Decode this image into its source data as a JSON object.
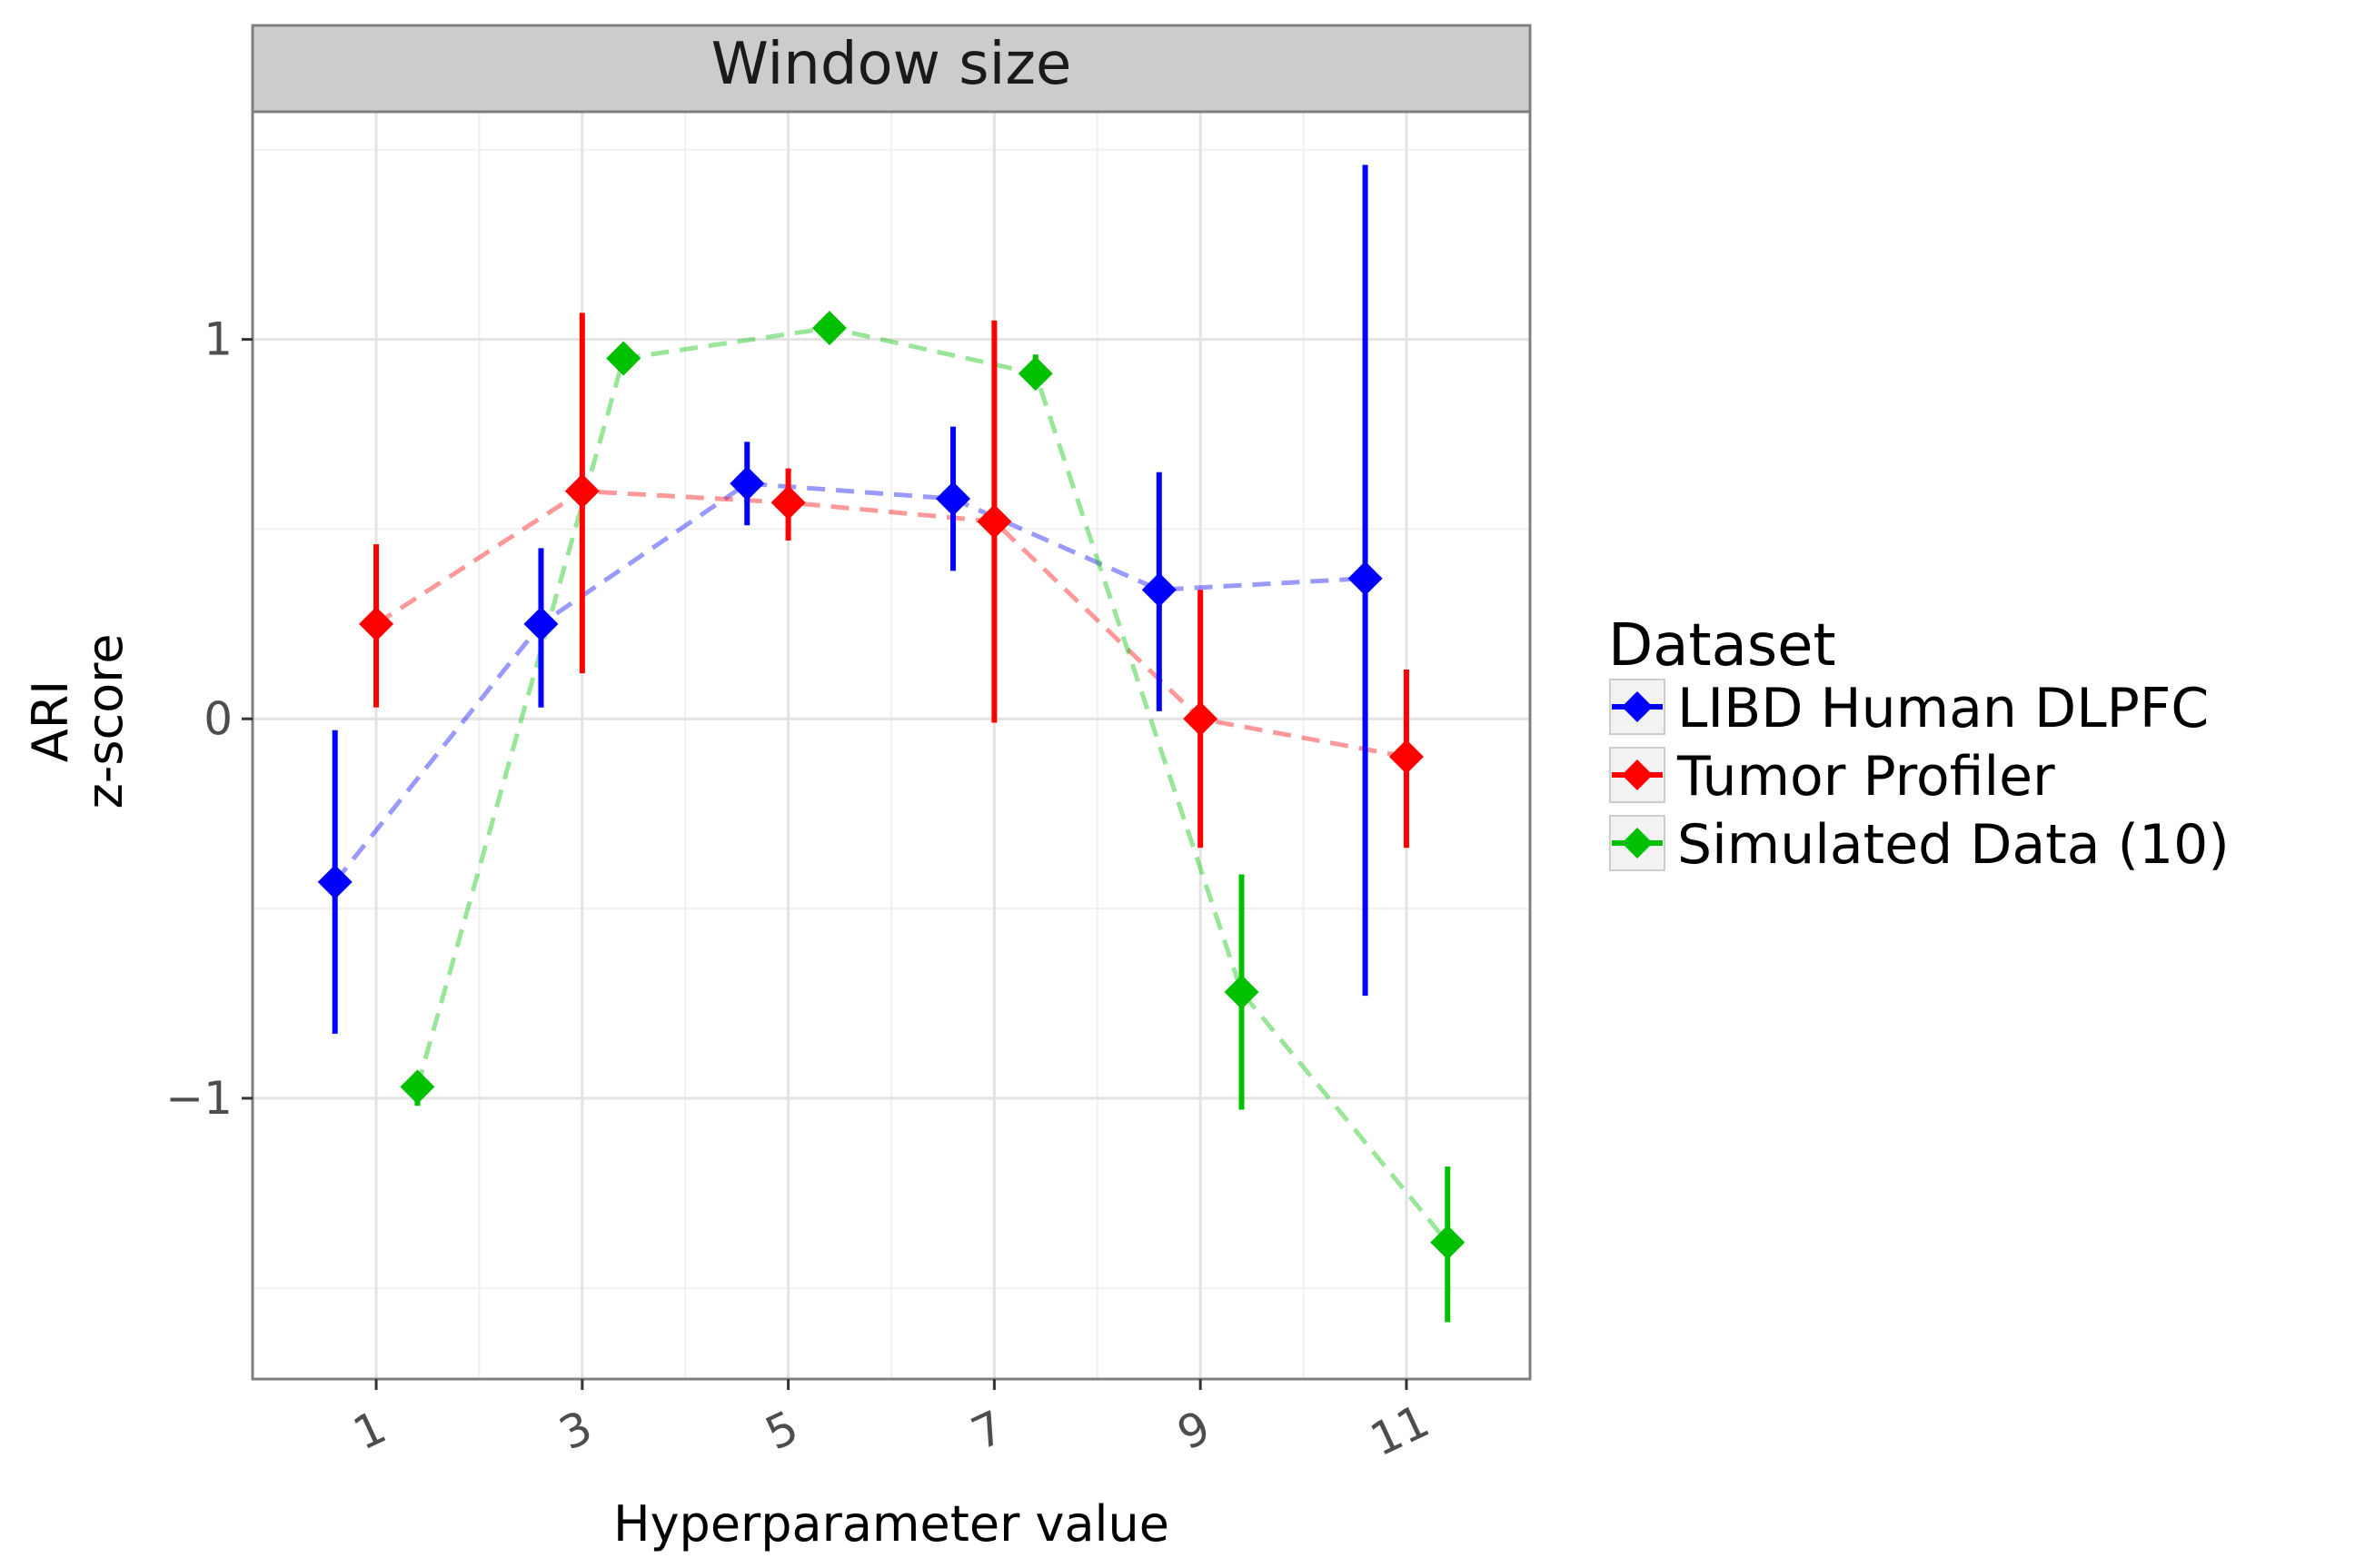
{
  "chart_data": {
    "type": "line",
    "facet_title": "Window size",
    "xlabel": "Hyperparameter value",
    "ylabel_line1": "ARI",
    "ylabel_line2": "z-score",
    "x_ticks": [
      "1",
      "3",
      "5",
      "7",
      "9",
      "11"
    ],
    "y_ticks": [
      "1",
      "0",
      "−1"
    ],
    "y_tick_values": [
      1,
      0,
      -1
    ],
    "xlim": [
      -0.2,
      12.2
    ],
    "ylim": [
      -1.74,
      1.6
    ],
    "grid": true,
    "legend_position": "right",
    "legend_title": "Dataset",
    "series": [
      {
        "name": "LIBD Human DLPFC",
        "color": "#0000ff",
        "dodge": -0.4,
        "points": [
          {
            "x": 1,
            "y": -0.43,
            "ymin": -0.83,
            "ymax": -0.03
          },
          {
            "x": 3,
            "y": 0.25,
            "ymin": 0.03,
            "ymax": 0.45
          },
          {
            "x": 5,
            "y": 0.62,
            "ymin": 0.51,
            "ymax": 0.73
          },
          {
            "x": 7,
            "y": 0.58,
            "ymin": 0.39,
            "ymax": 0.77
          },
          {
            "x": 9,
            "y": 0.34,
            "ymin": 0.02,
            "ymax": 0.65
          },
          {
            "x": 11,
            "y": 0.37,
            "ymin": -0.73,
            "ymax": 1.46
          }
        ]
      },
      {
        "name": "Tumor Profiler",
        "color": "#ff0000",
        "dodge": 0,
        "points": [
          {
            "x": 1,
            "y": 0.25,
            "ymin": 0.03,
            "ymax": 0.46
          },
          {
            "x": 3,
            "y": 0.6,
            "ymin": 0.12,
            "ymax": 1.07
          },
          {
            "x": 5,
            "y": 0.57,
            "ymin": 0.47,
            "ymax": 0.66
          },
          {
            "x": 7,
            "y": 0.52,
            "ymin": -0.01,
            "ymax": 1.05
          },
          {
            "x": 9,
            "y": 0.0,
            "ymin": -0.34,
            "ymax": 0.34
          },
          {
            "x": 11,
            "y": -0.1,
            "ymin": -0.34,
            "ymax": 0.13
          }
        ]
      },
      {
        "name": "Simulated Data (10)",
        "color": "#00c000",
        "dodge": 0.4,
        "points": [
          {
            "x": 1,
            "y": -0.97,
            "ymin": -1.02,
            "ymax": -0.93
          },
          {
            "x": 3,
            "y": 0.95,
            "ymin": 0.93,
            "ymax": 0.97
          },
          {
            "x": 5,
            "y": 1.03,
            "ymin": 1.01,
            "ymax": 1.05
          },
          {
            "x": 7,
            "y": 0.91,
            "ymin": 0.87,
            "ymax": 0.96
          },
          {
            "x": 9,
            "y": -0.72,
            "ymin": -1.03,
            "ymax": -0.41
          },
          {
            "x": 11,
            "y": -1.38,
            "ymin": -1.59,
            "ymax": -1.18
          }
        ]
      }
    ]
  }
}
